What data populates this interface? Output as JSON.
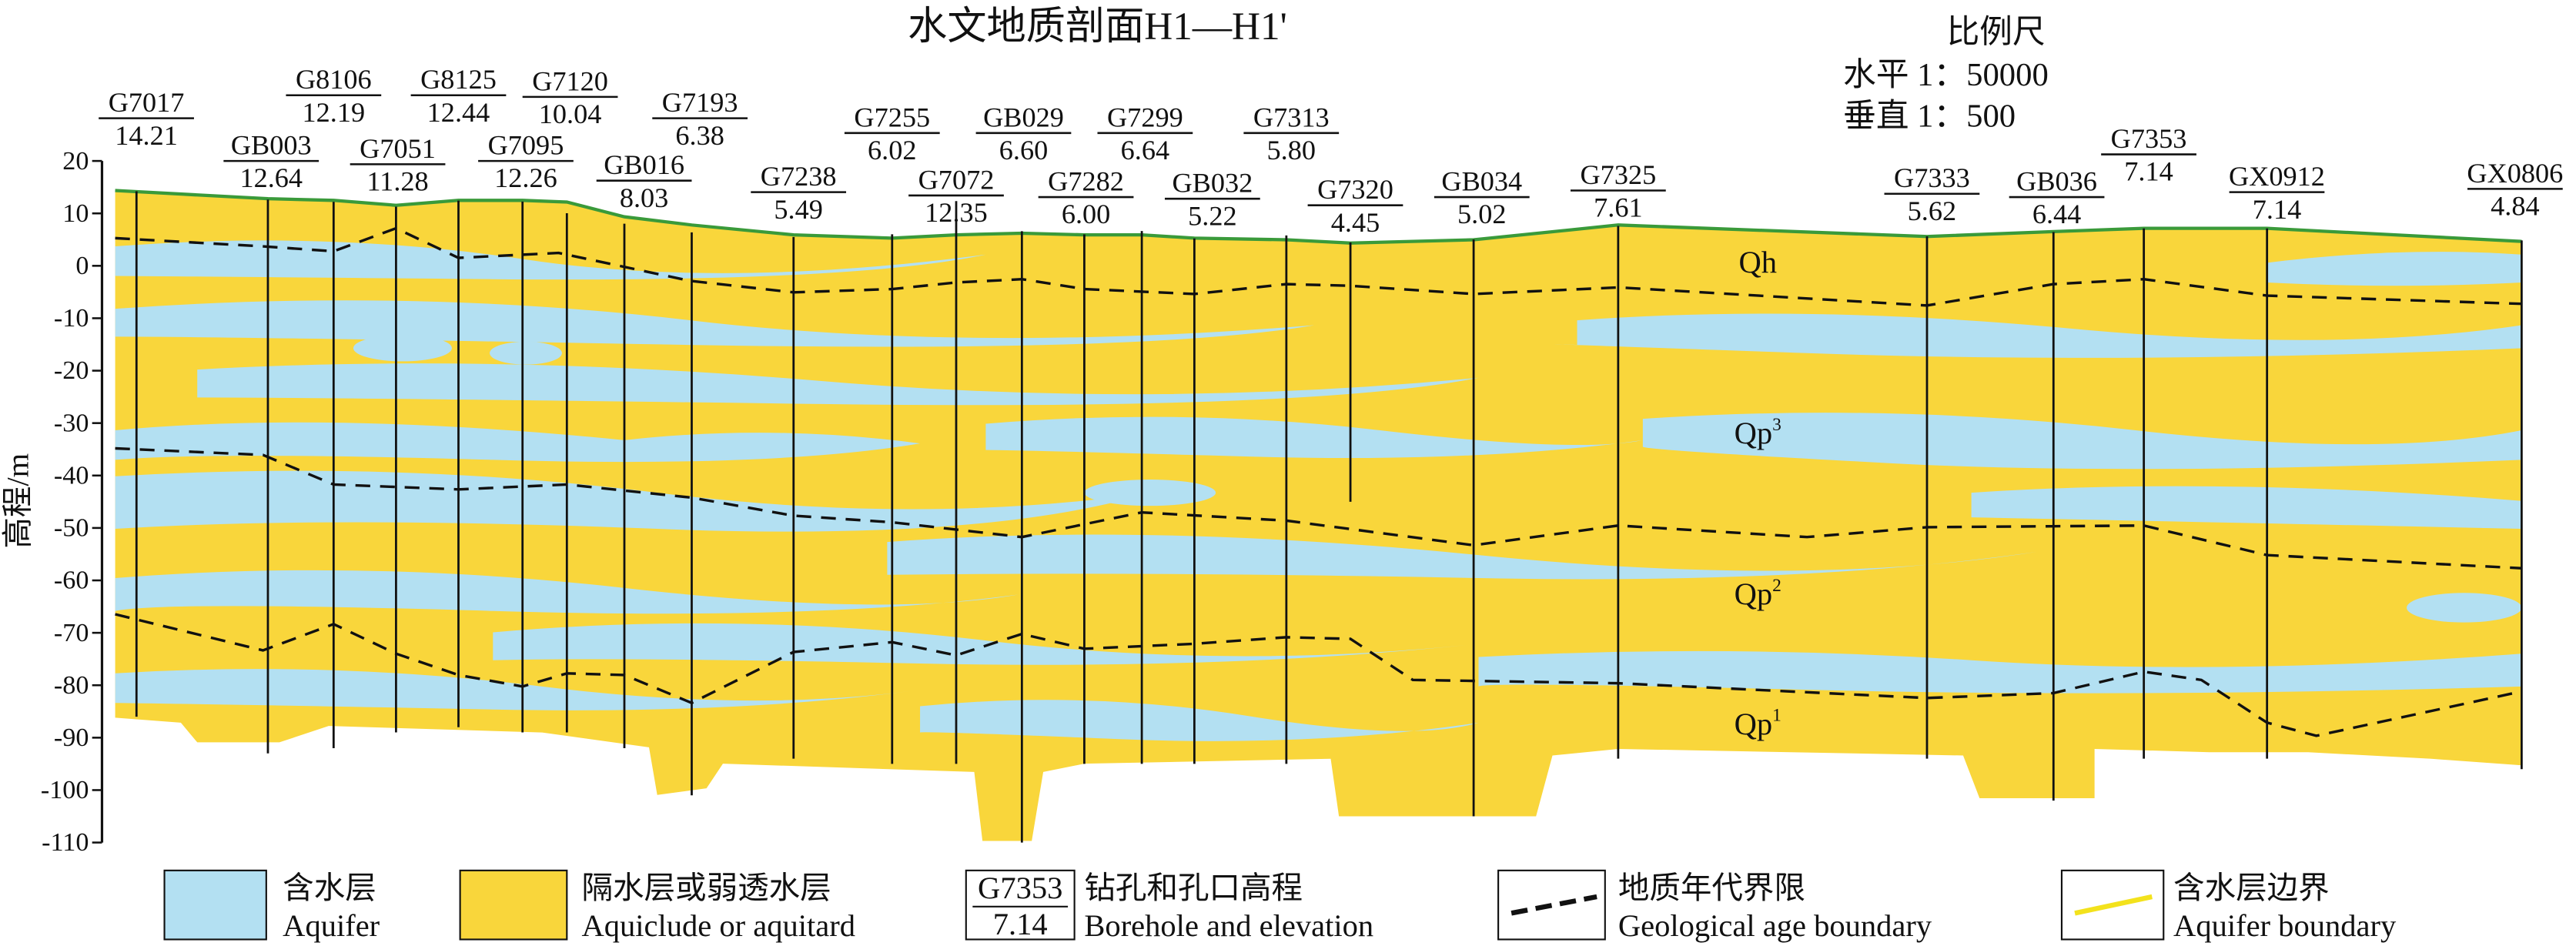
{
  "title": "水文地质剖面H1—H1'",
  "scale": {
    "title": "比例尺",
    "horizontal": "水平 1：50000",
    "vertical": "垂直 1：500"
  },
  "axis": {
    "label": "高程/m",
    "ylim": [
      -110,
      20
    ],
    "ticks": [
      20,
      10,
      0,
      -10,
      -20,
      -30,
      -40,
      -50,
      -60,
      -70,
      -80,
      -90,
      -100,
      -110
    ]
  },
  "boreholes": [
    {
      "name": "G7017",
      "elevation": 14.21
    },
    {
      "name": "GB003",
      "elevation": 12.64
    },
    {
      "name": "G8106",
      "elevation": 12.19
    },
    {
      "name": "G7051",
      "elevation": 11.28
    },
    {
      "name": "G8125",
      "elevation": 12.44
    },
    {
      "name": "G7095",
      "elevation": 12.26
    },
    {
      "name": "G7120",
      "elevation": 10.04
    },
    {
      "name": "GB016",
      "elevation": 8.03
    },
    {
      "name": "G7193",
      "elevation": 6.38
    },
    {
      "name": "G7238",
      "elevation": 5.49
    },
    {
      "name": "G7255",
      "elevation": 6.02
    },
    {
      "name": "G7072",
      "elevation": 12.35
    },
    {
      "name": "GB029",
      "elevation": {
        "value": 6.6,
        "label": "6.60"
      }
    },
    {
      "name": "G7282",
      "elevation": {
        "value": 6,
        "label": "6.00"
      }
    },
    {
      "name": "G7299",
      "elevation": 6.64
    },
    {
      "name": "GB032",
      "elevation": 5.22
    },
    {
      "name": "G7313",
      "elevation": {
        "value": 5.8,
        "label": "5.80"
      }
    },
    {
      "name": "G7320",
      "elevation": 4.45
    },
    {
      "name": "GB034",
      "elevation": 5.02
    },
    {
      "name": "G7325",
      "elevation": 7.61
    },
    {
      "name": "G7333",
      "elevation": 5.62
    },
    {
      "name": "GB036",
      "elevation": 6.44
    },
    {
      "name": "G7353",
      "elevation": 7.14
    },
    {
      "name": "GX0912",
      "elevation": 7.14
    },
    {
      "name": "GX0806",
      "elevation": 4.84
    }
  ],
  "layers": [
    {
      "base": "Qh"
    },
    {
      "base": "Qp",
      "sup": "3"
    },
    {
      "base": "Qp",
      "sup": "2"
    },
    {
      "base": "Qp",
      "sup": "1"
    }
  ],
  "legend": {
    "aquifer": {
      "zh": "含水层",
      "en": "Aquifer"
    },
    "aquitard": {
      "zh": "隔水层或弱透水层",
      "en": "Aquiclude or aquitard"
    },
    "borehole": {
      "name": "G7353",
      "elevation": "7.14",
      "zh": "钻孔和孔口高程",
      "en": "Borehole and elevation"
    },
    "age_boundary": {
      "zh": "地质年代界限",
      "en": "Geological age boundary"
    },
    "aquifer_boundary": {
      "zh": "含水层边界",
      "en": "Aquifer boundary"
    }
  }
}
